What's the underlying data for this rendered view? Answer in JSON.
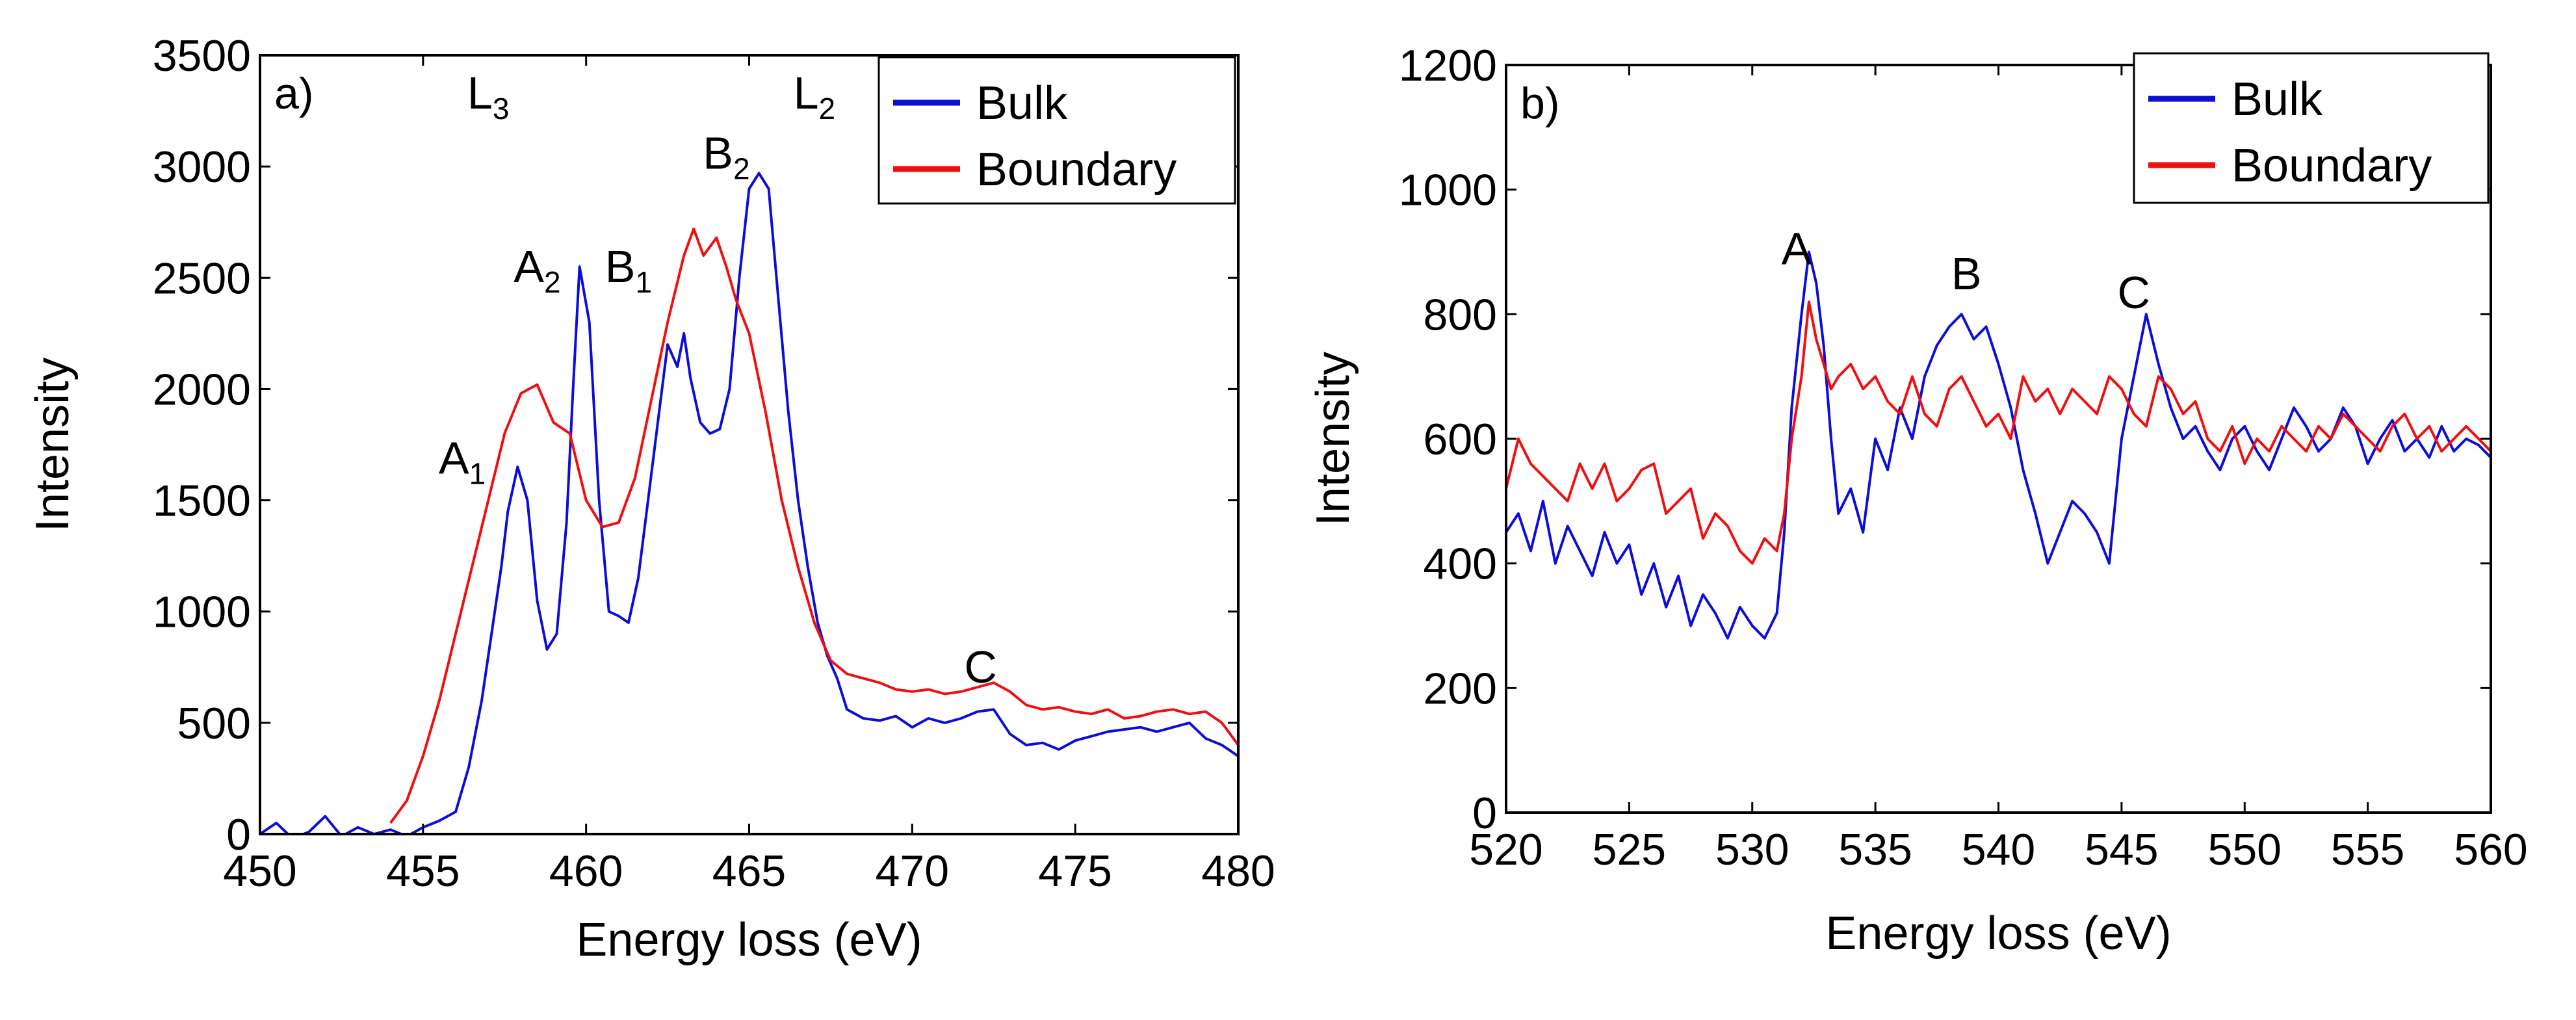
{
  "chart_data": [
    {
      "type": "line",
      "panel_label": "a)",
      "xlabel": "Energy loss (eV)",
      "ylabel": "Intensity",
      "xlim": [
        450,
        480
      ],
      "ylim": [
        0,
        3500
      ],
      "xticks": [
        450,
        455,
        460,
        465,
        470,
        475,
        480
      ],
      "yticks": [
        0,
        500,
        1000,
        1500,
        2000,
        2500,
        3000,
        3500
      ],
      "legend": {
        "position": "top-right",
        "entries": [
          "Bulk",
          "Boundary"
        ]
      },
      "annotations": [
        {
          "text": "L",
          "sub": "3",
          "x": 457.0,
          "y": 3260
        },
        {
          "text": "L",
          "sub": "2",
          "x": 467.0,
          "y": 3260
        },
        {
          "text": "A",
          "sub": "1",
          "x": 456.2,
          "y": 1620
        },
        {
          "text": "A",
          "sub": "2",
          "x": 458.5,
          "y": 2480
        },
        {
          "text": "B",
          "sub": "1",
          "x": 461.3,
          "y": 2480
        },
        {
          "text": "B",
          "sub": "2",
          "x": 464.3,
          "y": 2990
        },
        {
          "text": "C",
          "sub": "",
          "x": 472.1,
          "y": 680
        }
      ],
      "series": [
        {
          "name": "Bulk",
          "color": "#0d0dd9",
          "x": [
            450.0,
            450.5,
            451.0,
            451.5,
            452.0,
            452.5,
            453.0,
            453.5,
            454.0,
            454.5,
            455.0,
            455.5,
            456.0,
            456.4,
            456.8,
            457.1,
            457.4,
            457.6,
            457.9,
            458.2,
            458.5,
            458.8,
            459.1,
            459.4,
            459.6,
            459.8,
            460.1,
            460.4,
            460.7,
            461.0,
            461.3,
            461.6,
            461.9,
            462.2,
            462.5,
            462.8,
            463.0,
            463.2,
            463.5,
            463.8,
            464.1,
            464.4,
            464.7,
            465.0,
            465.3,
            465.6,
            465.9,
            466.2,
            466.5,
            466.8,
            467.1,
            467.4,
            467.7,
            468.0,
            468.5,
            469.0,
            469.5,
            470.0,
            470.5,
            471.0,
            471.5,
            472.0,
            472.5,
            473.0,
            473.5,
            474.0,
            474.5,
            475.0,
            475.5,
            476.0,
            476.5,
            477.0,
            477.5,
            478.0,
            478.5,
            479.0,
            479.5,
            480.0
          ],
          "y": [
            0,
            50,
            -20,
            10,
            80,
            -10,
            30,
            0,
            20,
            -10,
            30,
            60,
            100,
            300,
            600,
            900,
            1200,
            1450,
            1650,
            1500,
            1050,
            830,
            900,
            1400,
            2000,
            2550,
            2300,
            1500,
            1000,
            980,
            950,
            1150,
            1500,
            1850,
            2200,
            2100,
            2250,
            2050,
            1850,
            1800,
            1820,
            2000,
            2500,
            2900,
            2970,
            2900,
            2400,
            1900,
            1500,
            1200,
            950,
            800,
            700,
            560,
            520,
            510,
            530,
            480,
            520,
            500,
            520,
            550,
            560,
            450,
            400,
            410,
            380,
            420,
            440,
            460,
            470,
            480,
            460,
            480,
            500,
            430,
            400,
            350
          ]
        },
        {
          "name": "Boundary",
          "color": "#f00f0f",
          "x": [
            454.0,
            454.5,
            455.0,
            455.5,
            456.0,
            456.5,
            457.0,
            457.5,
            458.0,
            458.5,
            459.0,
            459.5,
            460.0,
            460.5,
            461.0,
            461.5,
            462.0,
            462.5,
            463.0,
            463.3,
            463.6,
            464.0,
            464.3,
            464.6,
            465.0,
            465.5,
            466.0,
            466.5,
            467.0,
            467.5,
            468.0,
            468.5,
            469.0,
            469.5,
            470.0,
            470.5,
            471.0,
            471.5,
            472.0,
            472.5,
            473.0,
            473.5,
            474.0,
            474.5,
            475.0,
            475.5,
            476.0,
            476.5,
            477.0,
            477.5,
            478.0,
            478.5,
            479.0,
            479.5,
            480.0
          ],
          "y": [
            50,
            150,
            350,
            600,
            900,
            1200,
            1500,
            1800,
            1980,
            2020,
            1850,
            1800,
            1500,
            1380,
            1400,
            1600,
            1950,
            2300,
            2600,
            2720,
            2600,
            2680,
            2550,
            2400,
            2250,
            1900,
            1500,
            1200,
            950,
            780,
            720,
            700,
            680,
            650,
            640,
            650,
            630,
            640,
            660,
            680,
            640,
            580,
            560,
            570,
            550,
            540,
            560,
            520,
            530,
            550,
            560,
            540,
            550,
            500,
            400
          ]
        }
      ]
    },
    {
      "type": "line",
      "panel_label": "b)",
      "xlabel": "Energy loss (eV)",
      "ylabel": "Intensity",
      "xlim": [
        520,
        560
      ],
      "ylim": [
        0,
        1200
      ],
      "xticks": [
        520,
        525,
        530,
        535,
        540,
        545,
        550,
        555,
        560
      ],
      "yticks": [
        0,
        200,
        400,
        600,
        800,
        1000,
        1200
      ],
      "legend": {
        "position": "top-right",
        "entries": [
          "Bulk",
          "Boundary"
        ]
      },
      "annotations": [
        {
          "text": "A",
          "sub": "",
          "x": 531.8,
          "y": 880
        },
        {
          "text": "B",
          "sub": "",
          "x": 538.7,
          "y": 840
        },
        {
          "text": "C",
          "sub": "",
          "x": 545.5,
          "y": 810
        }
      ],
      "series": [
        {
          "name": "Bulk",
          "color": "#0d0dd9",
          "x": [
            520.0,
            520.5,
            521.0,
            521.5,
            522.0,
            522.5,
            523.0,
            523.5,
            524.0,
            524.5,
            525.0,
            525.5,
            526.0,
            526.5,
            527.0,
            527.5,
            528.0,
            528.5,
            529.0,
            529.5,
            530.0,
            530.5,
            531.0,
            531.3,
            531.6,
            532.0,
            532.3,
            532.6,
            532.9,
            533.2,
            533.5,
            534.0,
            534.5,
            535.0,
            535.5,
            536.0,
            536.5,
            537.0,
            537.5,
            538.0,
            538.5,
            539.0,
            539.5,
            540.0,
            540.5,
            541.0,
            541.5,
            542.0,
            542.5,
            543.0,
            543.5,
            544.0,
            544.5,
            545.0,
            545.5,
            546.0,
            546.5,
            547.0,
            547.5,
            548.0,
            548.5,
            549.0,
            549.5,
            550.0,
            550.5,
            551.0,
            551.5,
            552.0,
            552.5,
            553.0,
            553.5,
            554.0,
            554.5,
            555.0,
            555.5,
            556.0,
            556.5,
            557.0,
            557.5,
            558.0,
            558.5,
            559.0,
            559.5,
            560.0
          ],
          "y": [
            450,
            480,
            420,
            500,
            400,
            460,
            420,
            380,
            450,
            400,
            430,
            350,
            400,
            330,
            380,
            300,
            350,
            320,
            280,
            330,
            300,
            280,
            320,
            450,
            650,
            800,
            900,
            850,
            750,
            600,
            480,
            520,
            450,
            600,
            550,
            650,
            600,
            700,
            750,
            780,
            800,
            760,
            780,
            720,
            650,
            550,
            480,
            400,
            450,
            500,
            480,
            450,
            400,
            600,
            700,
            800,
            720,
            650,
            600,
            620,
            580,
            550,
            600,
            620,
            580,
            550,
            600,
            650,
            620,
            580,
            600,
            650,
            620,
            560,
            600,
            630,
            580,
            600,
            570,
            620,
            580,
            600,
            590,
            570
          ]
        },
        {
          "name": "Boundary",
          "color": "#f00f0f",
          "x": [
            520.0,
            520.5,
            521.0,
            521.5,
            522.0,
            522.5,
            523.0,
            523.5,
            524.0,
            524.5,
            525.0,
            525.5,
            526.0,
            526.5,
            527.0,
            527.5,
            528.0,
            528.5,
            529.0,
            529.5,
            530.0,
            530.5,
            531.0,
            531.3,
            531.6,
            532.0,
            532.3,
            532.6,
            532.9,
            533.2,
            533.5,
            534.0,
            534.5,
            535.0,
            535.5,
            536.0,
            536.5,
            537.0,
            537.5,
            538.0,
            538.5,
            539.0,
            539.5,
            540.0,
            540.5,
            541.0,
            541.5,
            542.0,
            542.5,
            543.0,
            543.5,
            544.0,
            544.5,
            545.0,
            545.5,
            546.0,
            546.5,
            547.0,
            547.5,
            548.0,
            548.5,
            549.0,
            549.5,
            550.0,
            550.5,
            551.0,
            551.5,
            552.0,
            552.5,
            553.0,
            553.5,
            554.0,
            554.5,
            555.0,
            555.5,
            556.0,
            556.5,
            557.0,
            557.5,
            558.0,
            558.5,
            559.0,
            559.5,
            560.0
          ],
          "y": [
            520,
            600,
            560,
            540,
            520,
            500,
            560,
            520,
            560,
            500,
            520,
            550,
            560,
            480,
            500,
            520,
            440,
            480,
            460,
            420,
            400,
            440,
            420,
            480,
            600,
            700,
            820,
            760,
            720,
            680,
            700,
            720,
            680,
            700,
            660,
            640,
            700,
            640,
            620,
            680,
            700,
            660,
            620,
            640,
            600,
            700,
            660,
            680,
            640,
            680,
            660,
            640,
            700,
            680,
            640,
            620,
            700,
            680,
            640,
            660,
            600,
            580,
            620,
            560,
            600,
            580,
            620,
            600,
            580,
            620,
            600,
            640,
            620,
            600,
            580,
            620,
            640,
            600,
            620,
            580,
            600,
            620,
            600,
            580
          ]
        }
      ]
    }
  ]
}
